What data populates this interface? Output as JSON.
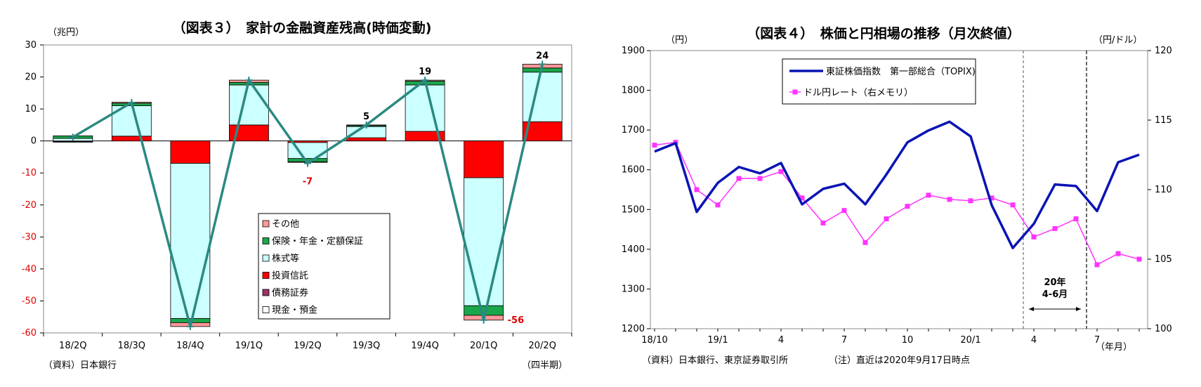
{
  "chart_data": [
    {
      "type": "bar",
      "title": "（図表３）　家計の金融資産残高(時価変動)",
      "unit_label": "（兆円）",
      "x_unit_label": "（四半期）",
      "source": "（資料）日本銀行",
      "categories": [
        "18/2Q",
        "18/3Q",
        "18/4Q",
        "19/1Q",
        "19/2Q",
        "19/3Q",
        "19/4Q",
        "20/1Q",
        "20/2Q"
      ],
      "ylim": [
        -60,
        30
      ],
      "yticks": [
        "30",
        "20",
        "10",
        "0",
        "-10",
        "-20",
        "-30",
        "-40",
        "-50",
        "-60"
      ],
      "legend": [
        "その他",
        "保険・年金・定額保証",
        "株式等",
        "投資信託",
        "債務証券",
        "現金・預金"
      ],
      "colors": {
        "その他": "#ff9999",
        "保険・年金・定額保証": "#1aa64a",
        "株式等": "#ccffff",
        "投資信託": "#ff0000",
        "債務証券": "#993366",
        "現金・預金": "#ffffff",
        "total_line": "#2a8a82"
      },
      "series": [
        {
          "name": "現金・預金",
          "values": [
            0,
            0,
            0,
            0,
            0,
            0,
            0,
            0,
            0
          ]
        },
        {
          "name": "債務証券",
          "values": [
            0,
            0,
            0,
            0,
            0,
            0,
            0,
            0,
            0
          ]
        },
        {
          "name": "投資信託",
          "values": [
            -0.2,
            1.5,
            -7,
            5,
            -0.5,
            1,
            3,
            -11.5,
            6
          ]
        },
        {
          "name": "株式等",
          "values": [
            0.8,
            9.5,
            -48.5,
            12.5,
            -5,
            3.5,
            14.5,
            -40,
            15.5
          ]
        },
        {
          "name": "保険・年金・定額保証",
          "values": [
            0.8,
            0.8,
            -1.3,
            0.8,
            -1,
            0.3,
            1.2,
            -3,
            1.3
          ]
        },
        {
          "name": "その他",
          "values": [
            -0.2,
            0.3,
            -1.2,
            0.7,
            -0.2,
            0.2,
            0.3,
            -1.5,
            1.2
          ]
        }
      ],
      "total": [
        1.2,
        12,
        -58,
        19,
        -7,
        5,
        19,
        -56,
        24
      ],
      "data_labels": [
        {
          "index": 4,
          "text": "-7"
        },
        {
          "index": 5,
          "text": "5"
        },
        {
          "index": 6,
          "text": "19"
        },
        {
          "index": 7,
          "text": "-56"
        },
        {
          "index": 8,
          "text": "24"
        }
      ]
    },
    {
      "type": "line",
      "title": "（図表４）　株価と円相場の推移（月次終値）",
      "left_unit": "（円）",
      "right_unit": "（円/ドル）",
      "x_unit_label": "（年月）",
      "source": "（資料）日本銀行、東京証券取引所",
      "note": "（注）直近は2020年9月17日時点",
      "x_tick_labels": [
        {
          "index": 0,
          "text": "18/10"
        },
        {
          "index": 3,
          "text": "19/1"
        },
        {
          "index": 6,
          "text": "4"
        },
        {
          "index": 9,
          "text": "7"
        },
        {
          "index": 12,
          "text": "10"
        },
        {
          "index": 15,
          "text": "20/1"
        },
        {
          "index": 18,
          "text": "4"
        },
        {
          "index": 21,
          "text": "7"
        }
      ],
      "ylim_left": [
        1200,
        1900
      ],
      "yticks_left": [
        "1900",
        "1800",
        "1700",
        "1600",
        "1500",
        "1400",
        "1300",
        "1200"
      ],
      "ylim_right": [
        100,
        120
      ],
      "yticks_right": [
        "120",
        "115",
        "110",
        "105",
        "100"
      ],
      "annotation": {
        "line1": "20年",
        "line2": "4-6月",
        "from_index": 17,
        "to_index": 20
      },
      "series": [
        {
          "name": "東証株価指数　第一部総合（TOPIX)",
          "axis": "left",
          "color": "#0a14b4",
          "values": [
            1646,
            1667,
            1494,
            1567,
            1607,
            1591,
            1617,
            1513,
            1552,
            1565,
            1513,
            1588,
            1669,
            1699,
            1721,
            1684,
            1511,
            1403,
            1464,
            1563,
            1559,
            1496,
            1619,
            1638
          ]
        },
        {
          "name": "ドル円レート（右メモリ）",
          "axis": "right",
          "color": "#ff33ff",
          "values": [
            113.2,
            113.4,
            110.0,
            108.9,
            110.8,
            110.8,
            111.3,
            109.4,
            107.6,
            108.5,
            106.2,
            107.9,
            108.8,
            109.6,
            109.3,
            109.2,
            109.4,
            108.9,
            106.6,
            107.2,
            107.9,
            104.6,
            105.4,
            105.0
          ]
        }
      ]
    }
  ]
}
